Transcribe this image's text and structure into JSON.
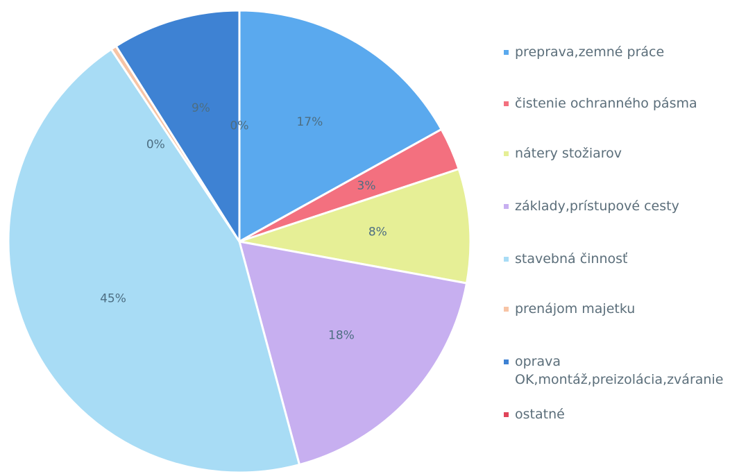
{
  "chart_data": {
    "type": "pie",
    "categories": [
      "preprava,zemné práce",
      "čistenie ochranného pásma",
      "nátery stožiarov",
      "základy,prístupové cesty",
      "stavebná činnosť",
      "prenájom majetku",
      "oprava OK,montáž,preizolácia,zváranie",
      "ostatné"
    ],
    "values": [
      17,
      3,
      8,
      18,
      45,
      0.4,
      9,
      0
    ],
    "value_labels": [
      "17%",
      "3%",
      "8%",
      "18%",
      "45%",
      "0%",
      "9%",
      "0%"
    ],
    "colors": [
      "#5aa9ee",
      "#f3707f",
      "#e6ef96",
      "#c7aff0",
      "#a8dcf5",
      "#f7c4a5",
      "#3e82d3",
      "#e0455a"
    ],
    "legend": "right"
  }
}
